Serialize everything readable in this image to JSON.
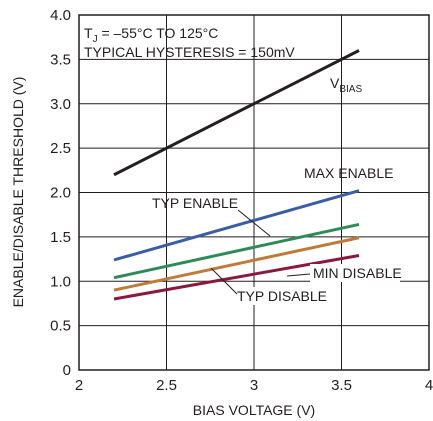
{
  "chart_data": {
    "type": "line",
    "title": "",
    "xlabel": "BIAS VOLTAGE (V)",
    "ylabel": "ENABLE/DISABLE THRESHOLD (V)",
    "xlim": [
      2,
      4
    ],
    "ylim": [
      0,
      4
    ],
    "x_ticks": [
      "2",
      "2.5",
      "3",
      "3.5",
      "4"
    ],
    "y_ticks": [
      "0",
      "0.5",
      "1.0",
      "1.5",
      "2.0",
      "2.5",
      "3.0",
      "3.5",
      "4.0"
    ],
    "grid": true,
    "legend": "none (series labeled directly on chart)",
    "conditions": {
      "line1_prefix": "T",
      "line1_sub": "J",
      "line1_rest": " = –55°C TO 125°C",
      "line2": "TYPICAL HYSTERESIS = 150mV"
    },
    "series": [
      {
        "label": "V",
        "label_sub": "BIAS",
        "color": "#231f20",
        "x": [
          2.2,
          3.6
        ],
        "y": [
          2.2,
          3.6
        ]
      },
      {
        "label": "MAX ENABLE",
        "color": "#3a5da8",
        "x": [
          2.2,
          3.6
        ],
        "y": [
          1.24,
          2.02
        ]
      },
      {
        "label": "TYP ENABLE",
        "color": "#2e8b57",
        "x": [
          2.2,
          3.6
        ],
        "y": [
          1.04,
          1.64
        ]
      },
      {
        "label": "TYP DISABLE",
        "color": "#c07a3a",
        "x": [
          2.2,
          3.6
        ],
        "y": [
          0.9,
          1.49
        ]
      },
      {
        "label": "MIN DISABLE",
        "color": "#8b1a3a",
        "x": [
          2.2,
          3.6
        ],
        "y": [
          0.8,
          1.29
        ]
      }
    ]
  }
}
